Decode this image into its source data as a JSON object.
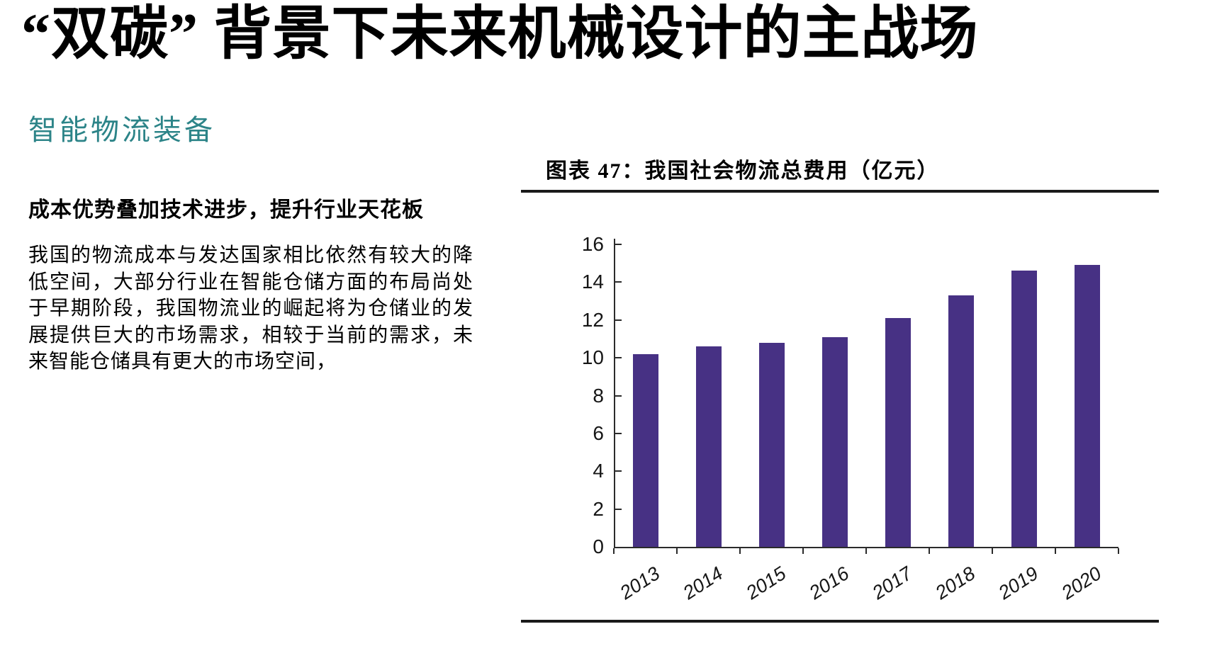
{
  "page": {
    "title": "“双碳” 背景下未来机械设计的主战场"
  },
  "section": {
    "heading": "智能物流装备",
    "subheading": "成本优势叠加技术进步，提升行业天花板",
    "paragraph": "我国的物流成本与发达国家相比依然有较大的降低空间，大部分行业在智能仓储方面的布局尚处 于早期阶段，我国物流业的崛起将为仓储业的发展提供巨大的市场需求，相较于当前的需求，未来智能仓储具有更大的市场空间，"
  },
  "chart_data": {
    "type": "bar",
    "title": "图表 47：我国社会物流总费用（亿元）",
    "categories": [
      "2013",
      "2014",
      "2015",
      "2016",
      "2017",
      "2018",
      "2019",
      "2020"
    ],
    "values": [
      10.2,
      10.6,
      10.8,
      11.1,
      12.1,
      13.3,
      14.6,
      14.9
    ],
    "xlabel": "",
    "ylabel": "",
    "ylim": [
      0,
      16
    ],
    "yticks": [
      0,
      2,
      4,
      6,
      8,
      10,
      12,
      14,
      16
    ],
    "grid": false,
    "legend": "none",
    "x_label_rotation_deg": -33,
    "bar_color": "#473184",
    "axis_color": "#2b2b2b"
  },
  "colors": {
    "heading_teal": "#2C8488",
    "text_black": "#000000",
    "rule_black": "#1a1a1a"
  }
}
